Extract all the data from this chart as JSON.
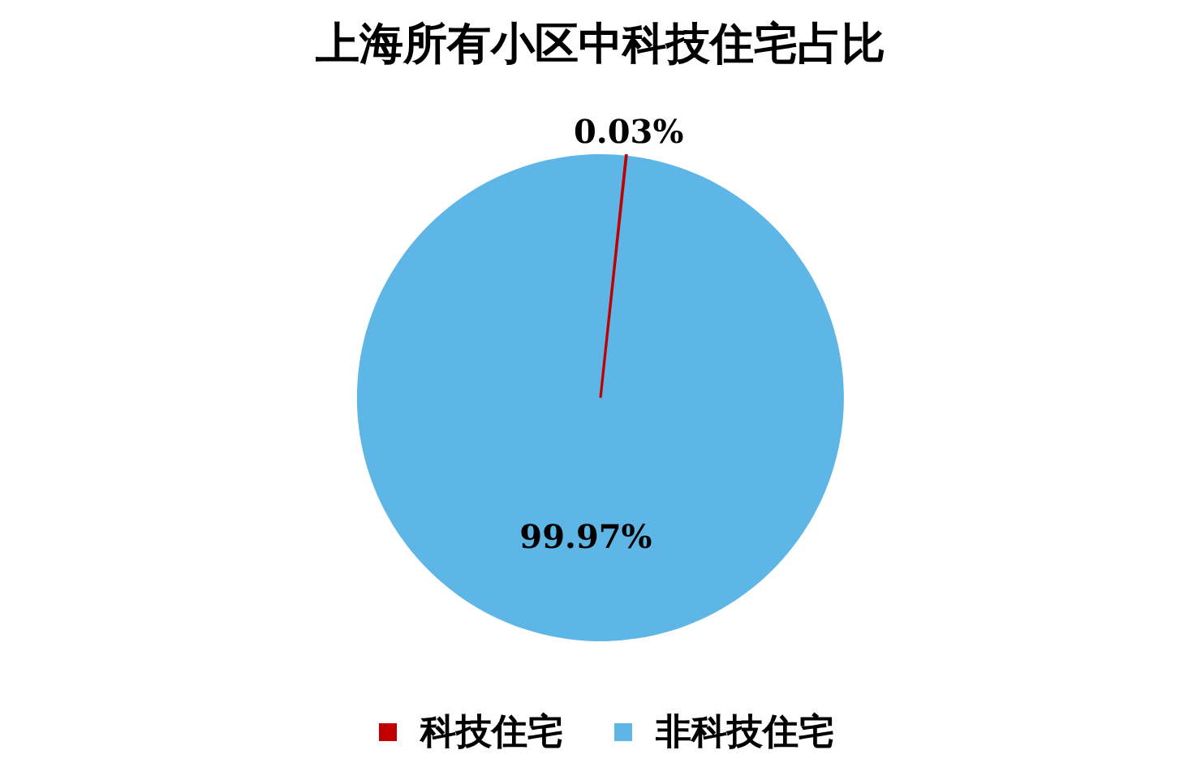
{
  "chart_data": {
    "type": "pie",
    "title": "上海所有小区中科技住宅占比",
    "categories": [
      "科技住宅",
      "非科技住宅"
    ],
    "values": [
      0.03,
      99.97
    ],
    "colors": [
      "#c00000",
      "#5db6e5"
    ],
    "value_labels": [
      "0.03%",
      "99.97%"
    ],
    "legend": "bottom"
  }
}
